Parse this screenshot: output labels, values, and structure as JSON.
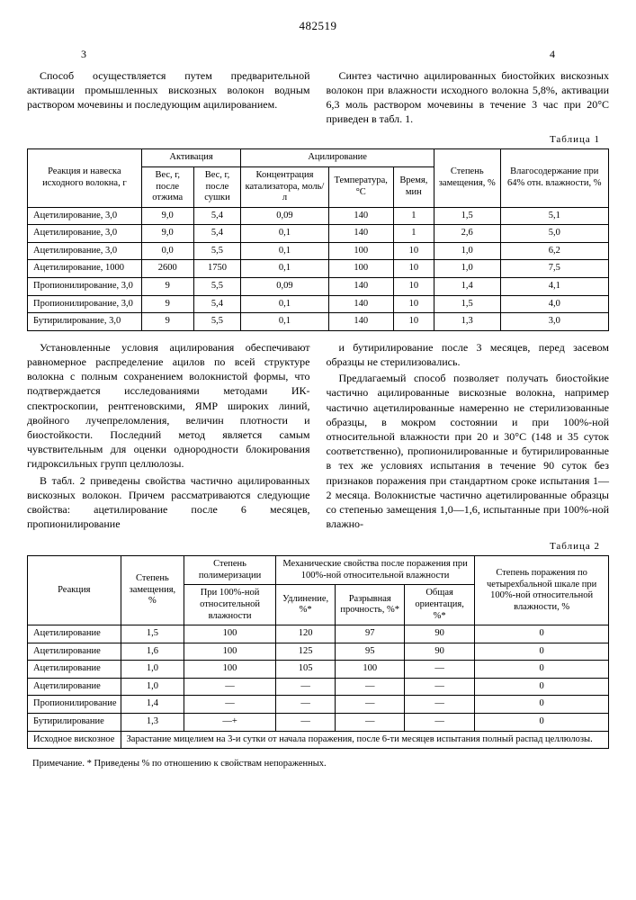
{
  "doc_number": "482519",
  "page_left": "3",
  "page_right": "4",
  "intro_left": "Способ осуществляется путем предварительной активации промышленных вискозных волокон водным раствором мочевины и последующим ацилированием.",
  "intro_right": "Синтез частично ацилированных биостойких вискозных волокон при влажности исходного волокна 5,8%, активации 6,3 моль раствором мочевины в течение 3 час при 20°С приведен в табл. 1.",
  "table1": {
    "caption": "Таблица 1",
    "headers": {
      "reaction": "Реакция и навеска исходного волокна, г",
      "activation": "Активация",
      "acylation": "Ацилирование",
      "sub_weight_press": "Вес, г, после отжима",
      "sub_weight_dry": "Вес, г, после сушки",
      "sub_conc": "Концентрация катализатора, моль/л",
      "sub_temp": "Температура, °С",
      "sub_time": "Время, мин",
      "degree": "Степень замещения, %",
      "moisture": "Влагосодержание при 64% отн. влажности, %"
    },
    "rows": [
      {
        "r": "Ацетилирование, 3,0",
        "a1": "9,0",
        "a2": "5,4",
        "c": "0,09",
        "t": "140",
        "tm": "1",
        "d": "1,5",
        "m": "5,1"
      },
      {
        "r": "Ацетилирование, 3,0",
        "a1": "9,0",
        "a2": "5,4",
        "c": "0,1",
        "t": "140",
        "tm": "1",
        "d": "2,6",
        "m": "5,0"
      },
      {
        "r": "Ацетилирование, 3,0",
        "a1": "0,0",
        "a2": "5,5",
        "c": "0,1",
        "t": "100",
        "tm": "10",
        "d": "1,0",
        "m": "6,2"
      },
      {
        "r": "Ацетилирование, 1000",
        "a1": "2600",
        "a2": "1750",
        "c": "0,1",
        "t": "100",
        "tm": "10",
        "d": "1,0",
        "m": "7,5"
      },
      {
        "r": "Пропионилирование, 3,0",
        "a1": "9",
        "a2": "5,5",
        "c": "0,09",
        "t": "140",
        "tm": "10",
        "d": "1,4",
        "m": "4,1"
      },
      {
        "r": "Пропионилирование, 3,0",
        "a1": "9",
        "a2": "5,4",
        "c": "0,1",
        "t": "140",
        "tm": "10",
        "d": "1,5",
        "m": "4,0"
      },
      {
        "r": "Бутирилирование, 3,0",
        "a1": "9",
        "a2": "5,5",
        "c": "0,1",
        "t": "140",
        "tm": "10",
        "d": "1,3",
        "m": "3,0"
      }
    ]
  },
  "mid_left_p1": "Установленные условия ацилирования обеспечивают равномерное распределение ацилов по всей структуре волокна с полным сохранением волокнистой формы, что подтверждается исследованиями методами ИК-спектроскопии, рентгеновскими, ЯМР широких линий, двойного лучепреломления, величин плотности и биостойкости. Последний метод является самым чувствительным для оценки однородности блокирования гидроксильных групп целлюлозы.",
  "mid_left_p2": "В табл. 2 приведены свойства частично ацилированных вискозных волокон. Причем рассматриваются следующие свойства: ацетилирование после 6 месяцев, пропионилирование",
  "mid_right_p1": "и бутирилирование после 3 месяцев, перед засевом образцы не стерилизовались.",
  "mid_right_p2": "Предлагаемый способ позволяет получать биостойкие частично ацилированные вискозные волокна, например частично ацетилированные намеренно не стерилизованные образцы, в мокром состоянии и при 100%-ной относительной влажности при 20 и 30°С (148 и 35 суток соответственно), пропионилированные и бутирилированные в тех же условиях испытания в течение 90 суток без признаков поражения при стандартном сроке испытания 1—2 месяца. Волокнистые частично ацетилированные образцы со степенью замещения 1,0—1,6, испытанные при 100%-ной влажно-",
  "table2": {
    "caption": "Таблица 2",
    "headers": {
      "reaction": "Реакция",
      "degree": "Степень замещения, %",
      "poly": "Степень полимеризации",
      "mech": "Механические свойства после поражения при 100%-ной относительной влажности",
      "poly_sub": "При 100%-ной относительной влажности",
      "elong": "Удлинение, %*",
      "tensile": "Разрывная прочность, %*",
      "orient": "Общая ориентация, %*",
      "damage": "Степень поражения по четырехбальной шкале при 100%-ной относительной влажности, %"
    },
    "rows": [
      {
        "r": "Ацетилирование",
        "d": "1,5",
        "p": "100",
        "e": "120",
        "t": "97",
        "o": "90",
        "dm": "0"
      },
      {
        "r": "Ацетилирование",
        "d": "1,6",
        "p": "100",
        "e": "125",
        "t": "95",
        "o": "90",
        "dm": "0"
      },
      {
        "r": "Ацетилирование",
        "d": "1,0",
        "p": "100",
        "e": "105",
        "t": "100",
        "o": "—",
        "dm": "0"
      },
      {
        "r": "Ацетилирование",
        "d": "1,0",
        "p": "—",
        "e": "—",
        "t": "—",
        "o": "—",
        "dm": "0"
      },
      {
        "r": "Пропионилирование",
        "d": "1,4",
        "p": "—",
        "e": "—",
        "t": "—",
        "o": "—",
        "dm": "0"
      },
      {
        "r": "Бутирилирование",
        "d": "1,3",
        "p": "—+",
        "e": "—",
        "t": "—",
        "o": "—",
        "dm": "0"
      }
    ],
    "footer_label": "Исходное вискозное",
    "footer_text": "Зарастание мицелием на 3-и сутки от начала поражения, после 6-ти месяцев испытания полный распад целлюлозы.",
    "note": "Примечание. * Приведены % по отношению к свойствам непораженных."
  }
}
